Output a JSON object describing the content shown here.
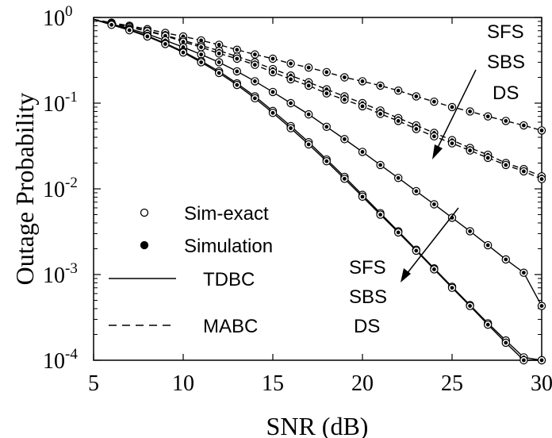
{
  "chart_data": {
    "type": "line",
    "xlabel": "SNR (dB)",
    "ylabel": "Outage Probability",
    "xlim": [
      5,
      30
    ],
    "ylim": [
      0.0001,
      1
    ],
    "yscale": "log",
    "x_ticks": [
      "5",
      "10",
      "15",
      "20",
      "25",
      "30"
    ],
    "y_ticks": [
      {
        "base": "10",
        "exp": "0"
      },
      {
        "base": "10",
        "exp": "-1"
      },
      {
        "base": "10",
        "exp": "-2"
      },
      {
        "base": "10",
        "exp": "-3"
      },
      {
        "base": "10",
        "exp": "-4"
      }
    ],
    "grid": false,
    "x": [
      6,
      7,
      8,
      9,
      10,
      11,
      12,
      13,
      14,
      15,
      16,
      17,
      18,
      19,
      20,
      21,
      22,
      23,
      24,
      25,
      26,
      27,
      28,
      29,
      30
    ],
    "series": [
      {
        "values": [
          0.87,
          0.8,
          0.73,
          0.66,
          0.6,
          0.54,
          0.48,
          0.42,
          0.37,
          0.33,
          0.29,
          0.26,
          0.23,
          0.2,
          0.18,
          0.16,
          0.14,
          0.12,
          0.104,
          0.09,
          0.08,
          0.07,
          0.062,
          0.055,
          0.048
        ],
        "style": "dashed"
      },
      {
        "values": [
          0.86,
          0.78,
          0.7,
          0.62,
          0.54,
          0.47,
          0.41,
          0.35,
          0.3,
          0.25,
          0.21,
          0.175,
          0.145,
          0.12,
          0.1,
          0.082,
          0.067,
          0.055,
          0.045,
          0.037,
          0.03,
          0.025,
          0.02,
          0.017,
          0.014
        ],
        "style": "dashed"
      },
      {
        "values": [
          0.85,
          0.77,
          0.69,
          0.61,
          0.52,
          0.45,
          0.38,
          0.33,
          0.28,
          0.23,
          0.19,
          0.16,
          0.13,
          0.11,
          0.092,
          0.075,
          0.062,
          0.05,
          0.041,
          0.034,
          0.028,
          0.023,
          0.019,
          0.016,
          0.013
        ],
        "style": "dashed"
      },
      {
        "values": [
          0.84,
          0.74,
          0.64,
          0.54,
          0.45,
          0.37,
          0.3,
          0.235,
          0.18,
          0.135,
          0.1,
          0.074,
          0.053,
          0.038,
          0.027,
          0.019,
          0.0134,
          0.0094,
          0.0066,
          0.0046,
          0.0032,
          0.0022,
          0.0015,
          0.00105,
          0.00043
        ],
        "style": "solid"
      },
      {
        "values": [
          0.83,
          0.72,
          0.61,
          0.5,
          0.4,
          0.31,
          0.235,
          0.17,
          0.12,
          0.081,
          0.054,
          0.035,
          0.022,
          0.0138,
          0.0085,
          0.0052,
          0.0032,
          0.00195,
          0.00118,
          0.00072,
          0.00044,
          0.00027,
          0.00017,
          0.000108,
          0.0001
        ],
        "style": "solid"
      },
      {
        "values": [
          0.82,
          0.71,
          0.6,
          0.49,
          0.39,
          0.3,
          0.225,
          0.163,
          0.114,
          0.077,
          0.051,
          0.033,
          0.021,
          0.0131,
          0.0081,
          0.005,
          0.0031,
          0.0019,
          0.00115,
          0.0007,
          0.00043,
          0.00026,
          0.00016,
          0.0001,
          0.0001
        ],
        "style": "solid"
      }
    ],
    "legend": {
      "items": [
        {
          "label": "Sim-exact",
          "marker": "open-circle"
        },
        {
          "label": "Simulation",
          "marker": "filled-circle"
        },
        {
          "label": "TDBC",
          "line": "solid"
        },
        {
          "label": "MABC",
          "line": "dashed"
        }
      ],
      "placement": "bottom-left"
    },
    "annotations": [
      {
        "lines": [
          "SFS",
          "SBS",
          "DS"
        ],
        "position": "top-right"
      },
      {
        "lines": [
          "SFS",
          "SBS",
          "DS"
        ],
        "position": "bottom-right"
      }
    ]
  }
}
